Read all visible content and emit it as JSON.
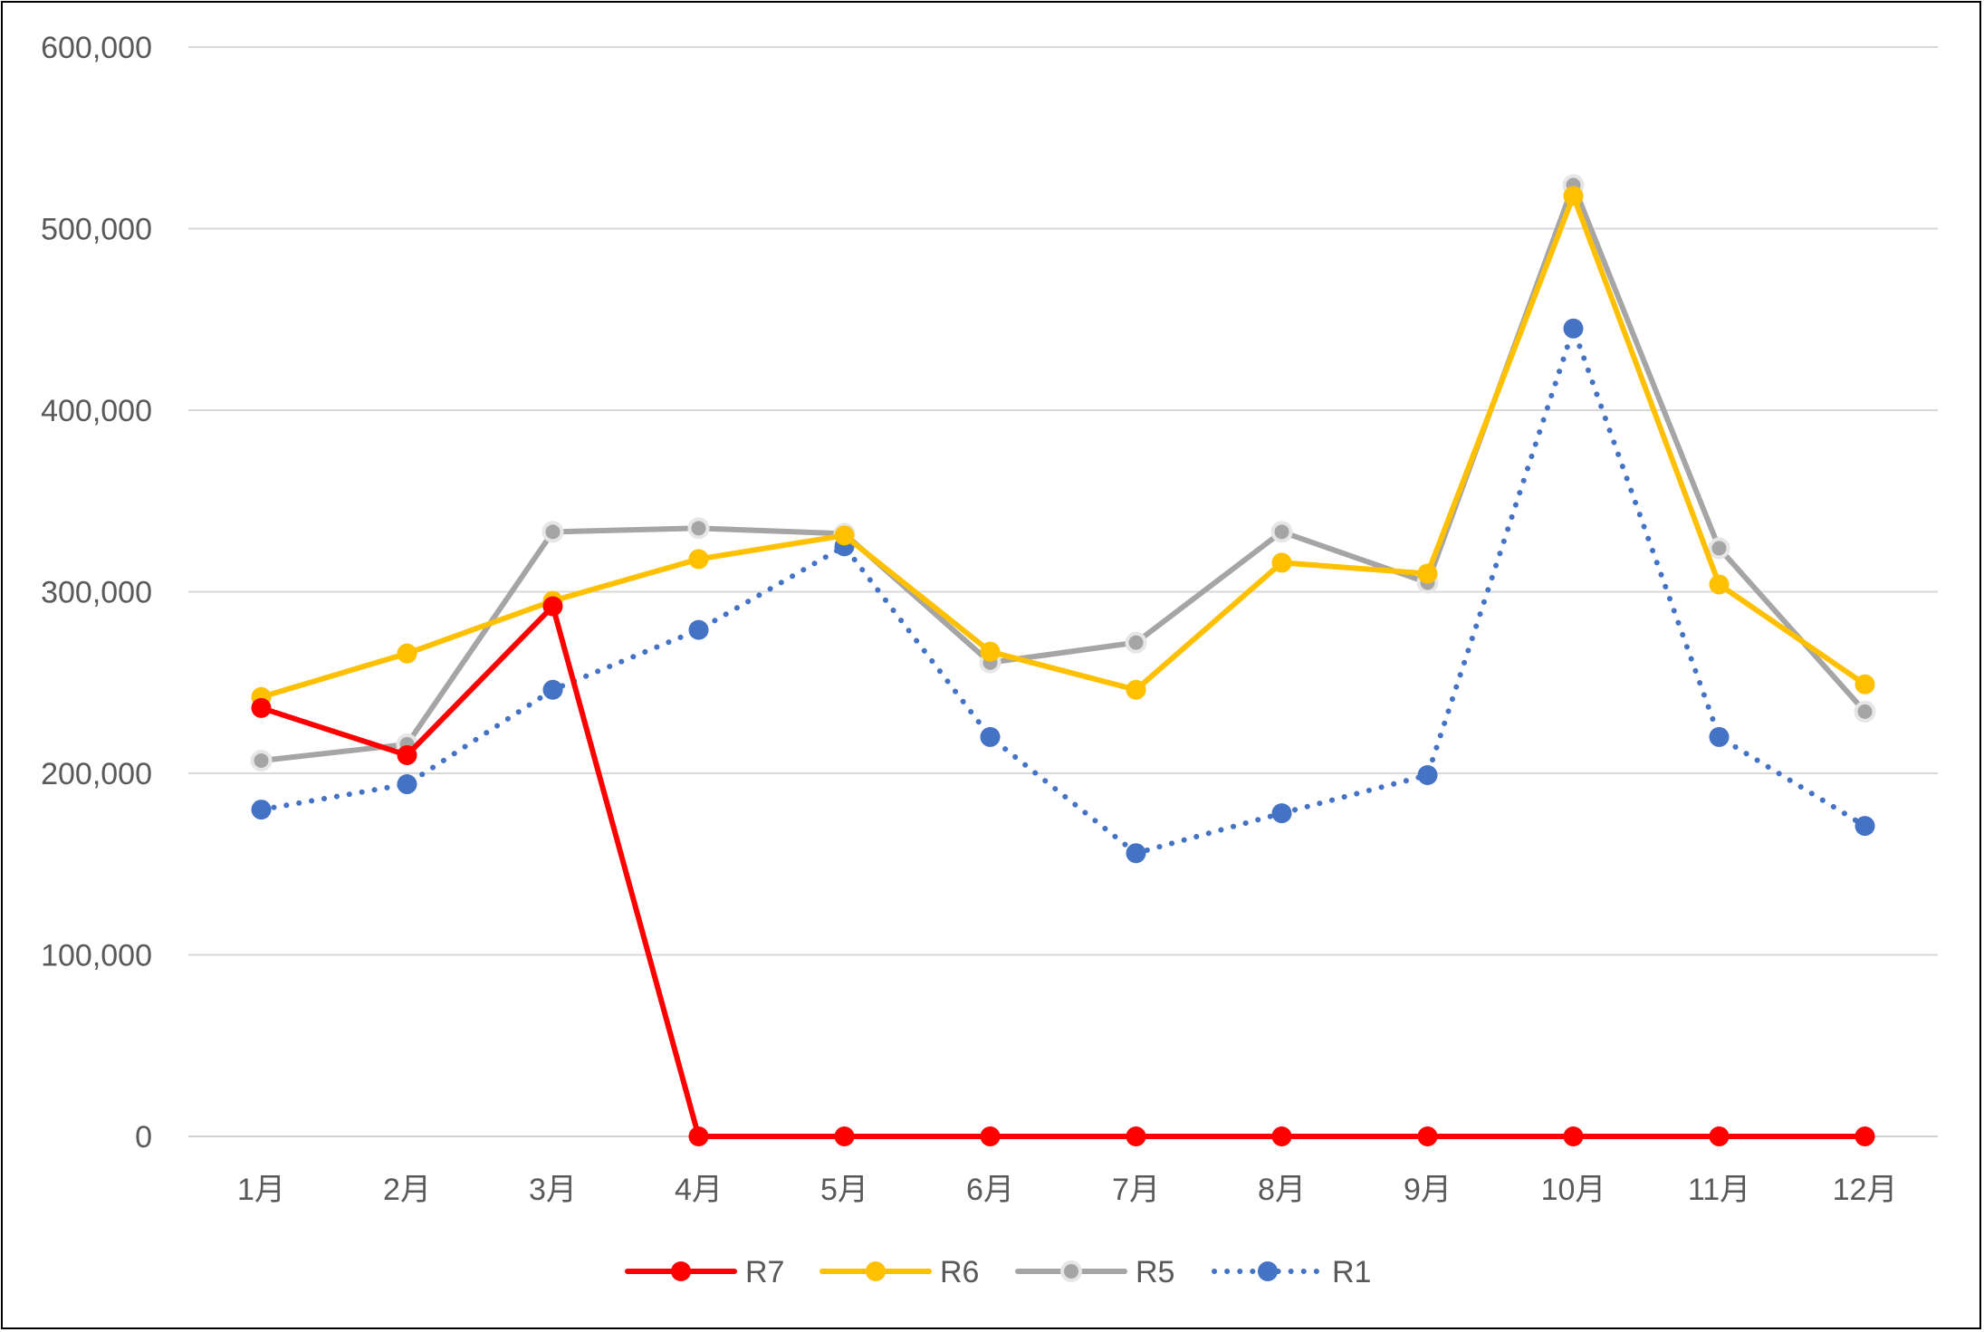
{
  "chart_data": {
    "type": "line",
    "categories": [
      "1月",
      "2月",
      "3月",
      "4月",
      "5月",
      "6月",
      "7月",
      "8月",
      "9月",
      "10月",
      "11月",
      "12月"
    ],
    "ylim": [
      0,
      600000
    ],
    "yticks": [
      0,
      100000,
      200000,
      300000,
      400000,
      500000,
      600000
    ],
    "ytick_labels": [
      "0",
      "100,000",
      "200,000",
      "300,000",
      "400,000",
      "500,000",
      "600,000"
    ],
    "grid": true,
    "legend_position": "bottom",
    "series": [
      {
        "name": "R7",
        "color": "#FF0000",
        "line_style": "solid",
        "marker": "filled-circle",
        "values": [
          236000,
          210000,
          292000,
          0,
          0,
          0,
          0,
          0,
          0,
          0,
          0,
          0
        ]
      },
      {
        "name": "R6",
        "color": "#FFC000",
        "line_style": "solid",
        "marker": "filled-circle",
        "values": [
          242000,
          266000,
          295000,
          318000,
          331000,
          267000,
          246000,
          316000,
          310000,
          518000,
          304000,
          249000
        ]
      },
      {
        "name": "R5",
        "color": "#A5A5A5",
        "line_style": "solid",
        "marker": "ringed-circle",
        "values": [
          207000,
          216000,
          333000,
          335000,
          332000,
          261000,
          272000,
          333000,
          305000,
          524000,
          324000,
          234000
        ]
      },
      {
        "name": "R1",
        "color": "#4472C4",
        "line_style": "dotted",
        "marker": "filled-circle",
        "values": [
          180000,
          194000,
          246000,
          279000,
          325000,
          220000,
          156000,
          178000,
          199000,
          445000,
          220000,
          171000
        ]
      }
    ]
  }
}
